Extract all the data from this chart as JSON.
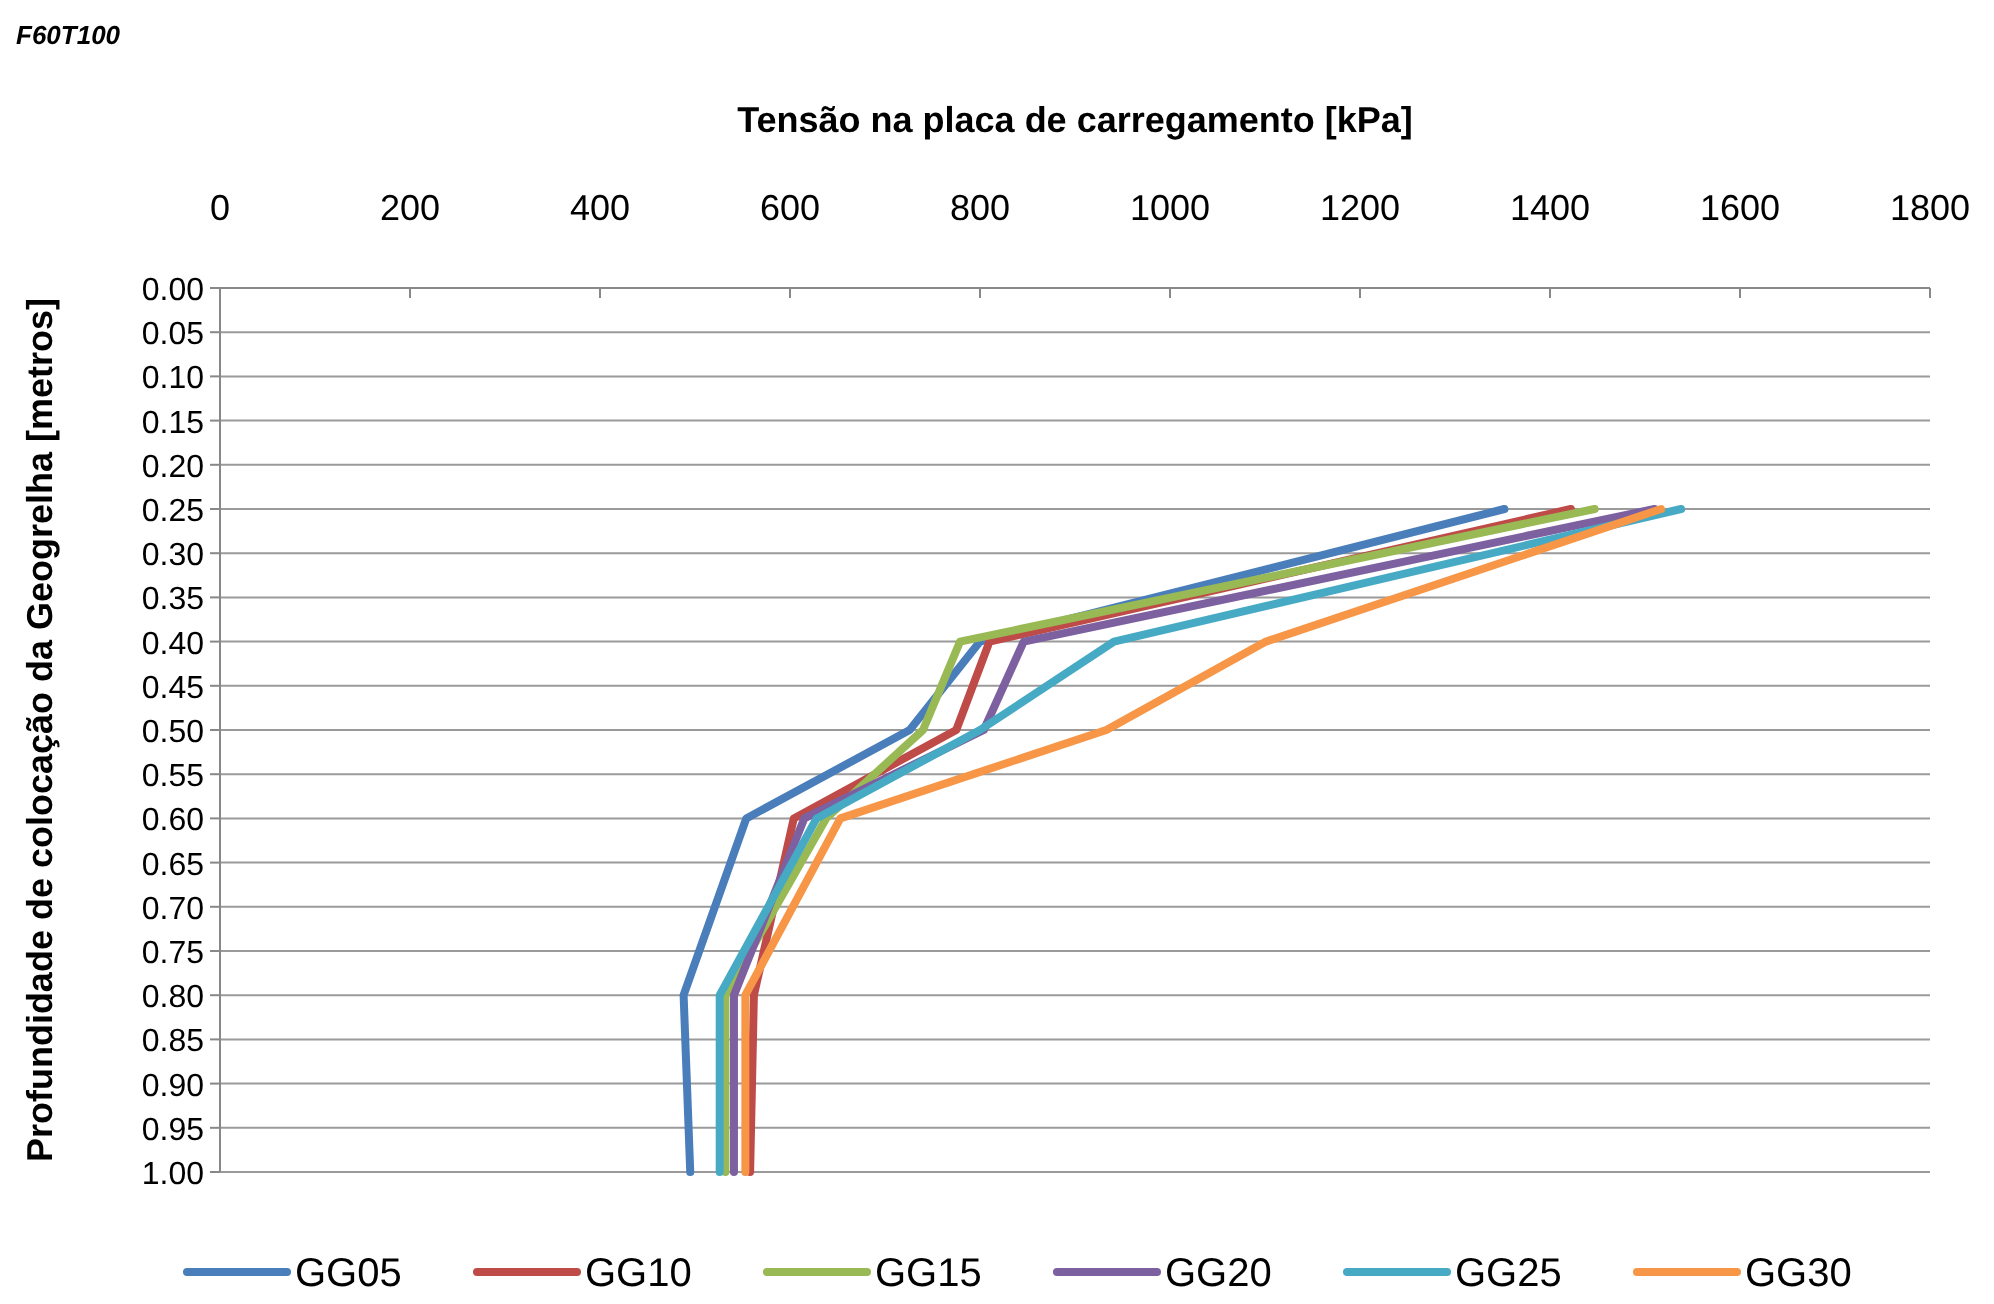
{
  "chart_data": {
    "type": "line",
    "title": "F60T100",
    "xlabel": "Tensão na placa de carregamento [kPa]",
    "ylabel": "Profundidade de colocação da Geogrelha [metros]",
    "xlim": [
      0,
      1800
    ],
    "xticks": [
      0,
      200,
      400,
      600,
      800,
      1000,
      1200,
      1400,
      1600,
      1800
    ],
    "ylim": [
      1.0,
      0
    ],
    "yticks": [
      {
        "value": 0,
        "label": "0.00"
      },
      {
        "value": 0.05,
        "label": "0.05"
      },
      {
        "value": 0.1,
        "label": "0.10"
      },
      {
        "value": 0.15,
        "label": "0.15"
      },
      {
        "value": 0.2,
        "label": "0.20"
      },
      {
        "value": 0.25,
        "label": "0.25"
      },
      {
        "value": 0.3,
        "label": "0.30"
      },
      {
        "value": 0.35,
        "label": "0.35"
      },
      {
        "value": 0.4,
        "label": "0.40"
      },
      {
        "value": 0.45,
        "label": "0.45"
      },
      {
        "value": 0.5,
        "label": "0.50"
      },
      {
        "value": 0.55,
        "label": "0.55"
      },
      {
        "value": 0.6,
        "label": "0.60"
      },
      {
        "value": 0.65,
        "label": "0.65"
      },
      {
        "value": 0.7,
        "label": "0.70"
      },
      {
        "value": 0.75,
        "label": "0.75"
      },
      {
        "value": 0.8,
        "label": "0.80"
      },
      {
        "value": 0.85,
        "label": "0.85"
      },
      {
        "value": 0.9,
        "label": "0.90"
      },
      {
        "value": 0.95,
        "label": "0.95"
      },
      {
        "value": 1.0,
        "label": "1.00"
      }
    ],
    "grid": "y",
    "legend": "bottom",
    "marker": "none",
    "line_style": "solid",
    "series": [
      {
        "name": "GG05",
        "color": "#4a7ebb",
        "x": [
          1352,
          800,
          726,
          554,
          488,
          495
        ],
        "values": [
          0.25,
          0.4,
          0.5,
          0.6,
          0.8,
          1.0
        ]
      },
      {
        "name": "GG10",
        "color": "#be4b48",
        "x": [
          1422,
          810,
          775,
          604,
          562,
          558
        ],
        "values": [
          0.25,
          0.4,
          0.5,
          0.6,
          0.8,
          1.0
        ]
      },
      {
        "name": "GG15",
        "color": "#98b954",
        "x": [
          1447,
          779,
          740,
          638,
          532,
          532
        ],
        "values": [
          0.25,
          0.4,
          0.5,
          0.6,
          0.8,
          1.0
        ]
      },
      {
        "name": "GG20",
        "color": "#7d60a0",
        "x": [
          1510,
          846,
          804,
          615,
          541,
          541
        ],
        "values": [
          0.25,
          0.4,
          0.5,
          0.6,
          0.8,
          1.0
        ]
      },
      {
        "name": "GG25",
        "color": "#46aac5",
        "x": [
          1538,
          941,
          800,
          628,
          526,
          526
        ],
        "values": [
          0.25,
          0.4,
          0.5,
          0.6,
          0.8,
          1.0
        ]
      },
      {
        "name": "GG30",
        "color": "#f79646",
        "x": [
          1517,
          1101,
          933,
          653,
          553,
          553
        ],
        "values": [
          0.25,
          0.4,
          0.5,
          0.6,
          0.8,
          1.0
        ]
      }
    ]
  }
}
